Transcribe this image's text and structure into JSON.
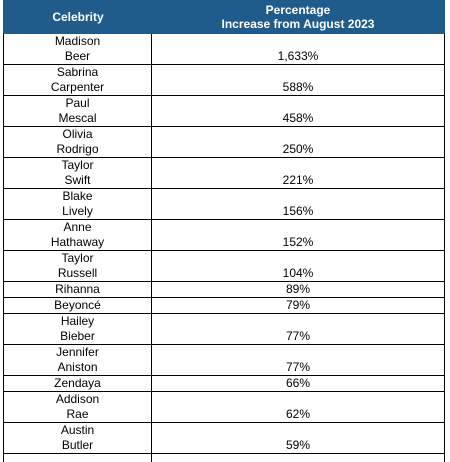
{
  "table": {
    "header": {
      "col1": "Celebrity",
      "col2": "Percentage\nIncrease from August 2023"
    },
    "rows": [
      {
        "name": "Madison\nBeer",
        "value": "1,633%"
      },
      {
        "name": "Sabrina\nCarpenter",
        "value": "588%"
      },
      {
        "name": "Paul\nMescal",
        "value": "458%"
      },
      {
        "name": "Olivia\nRodrigo",
        "value": "250%"
      },
      {
        "name": "Taylor\nSwift",
        "value": "221%"
      },
      {
        "name": "Blake\nLively",
        "value": "156%"
      },
      {
        "name": "Anne\nHathaway",
        "value": "152%"
      },
      {
        "name": "Taylor\nRussell",
        "value": "104%"
      },
      {
        "name": "Rihanna",
        "value": "89%"
      },
      {
        "name": "Beyoncé",
        "value": "79%"
      },
      {
        "name": "Hailey\nBieber",
        "value": "77%"
      },
      {
        "name": "Jennifer\nAniston",
        "value": "77%"
      },
      {
        "name": "Zendaya",
        "value": "66%"
      },
      {
        "name": "Addison\nRae",
        "value": "62%"
      },
      {
        "name": "Austin\nButler",
        "value": "59%"
      }
    ]
  }
}
